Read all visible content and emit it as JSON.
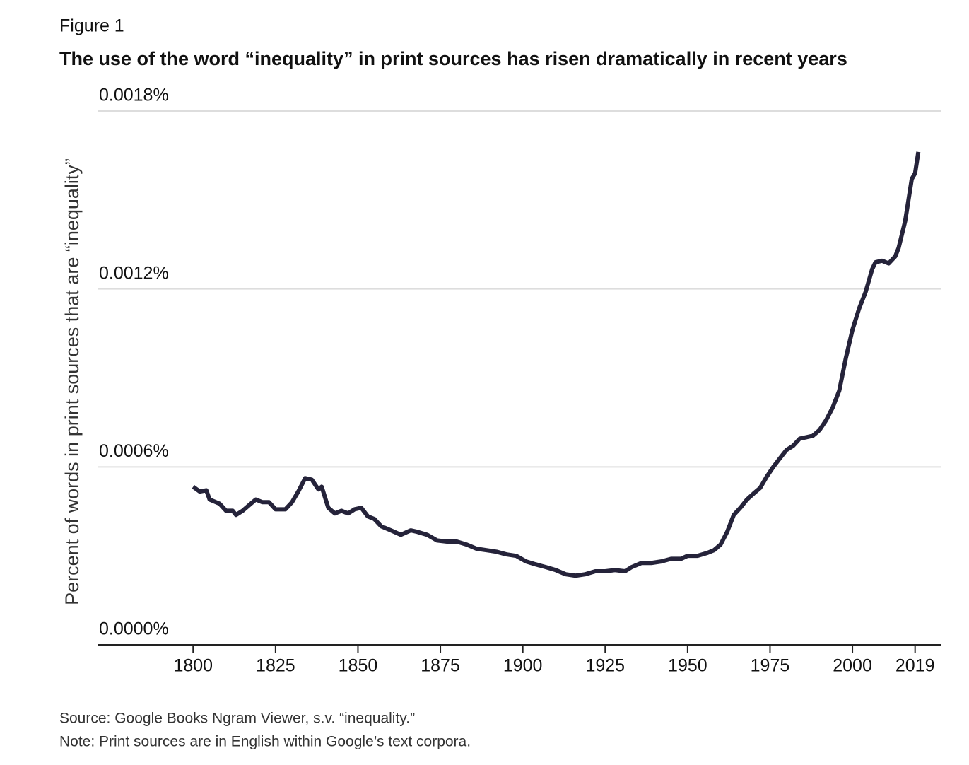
{
  "chart_data": {
    "type": "line",
    "figure_label": "Figure 1",
    "title": "The use of the word “inequality” in print sources has risen dramatically in recent years",
    "y_label": "Percent of words in print sources that are “inequality”",
    "source": "Source: Google Books Ngram Viewer, s.v. “inequality.”",
    "note": "Note: Print sources are in English within Google’s text corpora.",
    "x": [
      1800,
      1802,
      1804,
      1805,
      1808,
      1810,
      1812,
      1813,
      1815,
      1817,
      1819,
      1821,
      1823,
      1825,
      1828,
      1830,
      1832,
      1834,
      1836,
      1838,
      1839,
      1841,
      1843,
      1845,
      1847,
      1849,
      1851,
      1853,
      1855,
      1857,
      1860,
      1863,
      1866,
      1868,
      1871,
      1874,
      1877,
      1880,
      1883,
      1886,
      1889,
      1892,
      1895,
      1898,
      1901,
      1904,
      1907,
      1910,
      1913,
      1916,
      1919,
      1922,
      1925,
      1928,
      1931,
      1933,
      1936,
      1939,
      1942,
      1945,
      1948,
      1950,
      1953,
      1956,
      1958,
      1960,
      1962,
      1964,
      1966,
      1968,
      1970,
      1972,
      1974,
      1976,
      1978,
      1980,
      1982,
      1984,
      1986,
      1988,
      1990,
      1992,
      1994,
      1996,
      1998,
      2000,
      2002,
      2004,
      2006,
      2007,
      2009,
      2011,
      2013,
      2014,
      2016,
      2018,
      2019,
      2020
    ],
    "series": [
      {
        "name": "inequality",
        "color": "#25233a",
        "values": [
          0.000533,
          0.000517,
          0.000521,
          0.00049,
          0.000476,
          0.000452,
          0.000452,
          0.000438,
          0.000452,
          0.000471,
          0.00049,
          0.000481,
          0.000481,
          0.000457,
          0.000457,
          0.000481,
          0.000519,
          0.000562,
          0.000557,
          0.000524,
          0.000533,
          0.000462,
          0.000443,
          0.000452,
          0.000443,
          0.000457,
          0.000462,
          0.000433,
          0.000424,
          0.0004,
          0.000386,
          0.000371,
          0.000386,
          0.000381,
          0.000371,
          0.000352,
          0.000348,
          0.000348,
          0.000338,
          0.000324,
          0.000319,
          0.000314,
          0.000305,
          0.0003,
          0.000281,
          0.000271,
          0.000262,
          0.000252,
          0.000238,
          0.000233,
          0.000238,
          0.000248,
          0.000248,
          0.000252,
          0.000248,
          0.000262,
          0.000276,
          0.000276,
          0.000281,
          0.00029,
          0.00029,
          0.0003,
          0.0003,
          0.00031,
          0.000319,
          0.000338,
          0.000381,
          0.000438,
          0.000462,
          0.00049,
          0.00051,
          0.000529,
          0.000567,
          0.0006,
          0.000629,
          0.000657,
          0.000671,
          0.000695,
          0.0007,
          0.000705,
          0.000724,
          0.000757,
          0.0008,
          0.000857,
          0.000967,
          0.001062,
          0.001133,
          0.00119,
          0.001267,
          0.00129,
          0.001295,
          0.001286,
          0.00131,
          0.001338,
          0.001429,
          0.001571,
          0.00159,
          0.001662
        ]
      }
    ],
    "xlim": [
      1771,
      2027
    ],
    "xticks": [
      1800,
      1825,
      1850,
      1875,
      1900,
      1925,
      1950,
      1975,
      2000,
      2019
    ],
    "ylim": [
      0,
      0.0018
    ],
    "yticks": [
      {
        "value": 0,
        "label": "0.0000%"
      },
      {
        "value": 0.0006,
        "label": "0.0006%"
      },
      {
        "value": 0.0012,
        "label": "0.0012%"
      },
      {
        "value": 0.0018,
        "label": "0.0018%"
      }
    ],
    "grid": true
  }
}
